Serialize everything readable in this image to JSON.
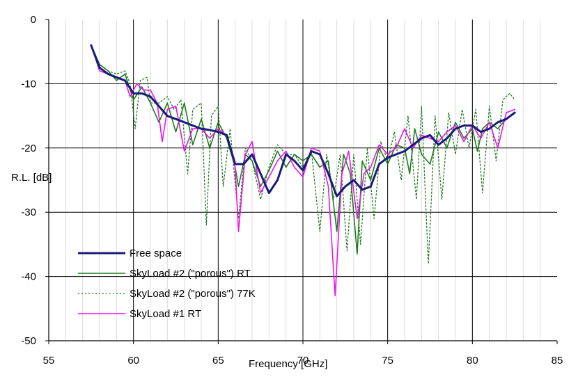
{
  "chart_data": {
    "type": "line",
    "title": "",
    "xlabel": "Frequency [GHz]",
    "ylabel": "R.L. [dB]",
    "xlim": [
      55,
      85
    ],
    "ylim": [
      -50,
      0
    ],
    "x_ticks": [
      55,
      60,
      65,
      70,
      75,
      80,
      85
    ],
    "y_ticks": [
      0,
      -10,
      -20,
      -30,
      -40,
      -50
    ],
    "x_tick_labels": [
      "55",
      "60",
      "65",
      "70",
      "75",
      "80",
      "85"
    ],
    "y_tick_labels": [
      "0",
      "-10",
      "-20",
      "-30",
      "-40",
      "-50"
    ],
    "grid": {
      "major": true,
      "minor_x": true
    },
    "legend": "inside bottom-left",
    "series": [
      {
        "name": "Free space",
        "color": "#1a1a7a",
        "style": "solid-thick",
        "points": [
          [
            57.5,
            -4
          ],
          [
            58,
            -7.5
          ],
          [
            58.5,
            -8.5
          ],
          [
            59,
            -9
          ],
          [
            59.5,
            -9.5
          ],
          [
            60,
            -11.5
          ],
          [
            60.5,
            -11.5
          ],
          [
            61,
            -12
          ],
          [
            61.5,
            -13.5
          ],
          [
            62,
            -15
          ],
          [
            62.5,
            -15.5
          ],
          [
            63,
            -16
          ],
          [
            63.5,
            -16.5
          ],
          [
            64,
            -17
          ],
          [
            64.5,
            -17.2
          ],
          [
            65,
            -17.5
          ],
          [
            65.5,
            -18
          ],
          [
            66,
            -22.5
          ],
          [
            66.5,
            -22.5
          ],
          [
            67,
            -21
          ],
          [
            67.5,
            -24
          ],
          [
            68,
            -27
          ],
          [
            68.5,
            -25
          ],
          [
            69,
            -21
          ],
          [
            69.5,
            -22
          ],
          [
            70,
            -23.5
          ],
          [
            70.5,
            -20.5
          ],
          [
            71,
            -21
          ],
          [
            71.5,
            -24
          ],
          [
            72,
            -27.5
          ],
          [
            72.5,
            -26
          ],
          [
            73,
            -25
          ],
          [
            73.5,
            -26.5
          ],
          [
            74,
            -26
          ],
          [
            74.5,
            -22.5
          ],
          [
            75,
            -21.5
          ],
          [
            75.5,
            -21
          ],
          [
            76,
            -20.5
          ],
          [
            76.5,
            -19.5
          ],
          [
            77,
            -18.5
          ],
          [
            77.5,
            -18
          ],
          [
            78,
            -19.5
          ],
          [
            78.5,
            -18.5
          ],
          [
            79,
            -17
          ],
          [
            79.5,
            -16.5
          ],
          [
            80,
            -16.5
          ],
          [
            80.5,
            -17.5
          ],
          [
            81,
            -17
          ],
          [
            81.5,
            -16
          ],
          [
            82,
            -15.5
          ],
          [
            82.5,
            -14.5
          ]
        ]
      },
      {
        "name": "SkyLoad #2 (\"porous\") RT",
        "color": "#1e7a1e",
        "style": "solid",
        "points": [
          [
            57.5,
            -4
          ],
          [
            58,
            -7
          ],
          [
            58.5,
            -8
          ],
          [
            59,
            -9.5
          ],
          [
            59.5,
            -8.5
          ],
          [
            60,
            -12.5
          ],
          [
            60.5,
            -10.5
          ],
          [
            61,
            -13
          ],
          [
            61.5,
            -16
          ],
          [
            62,
            -13
          ],
          [
            62.5,
            -17.5
          ],
          [
            63,
            -13
          ],
          [
            63.5,
            -19.5
          ],
          [
            64,
            -15.5
          ],
          [
            64.5,
            -20
          ],
          [
            65,
            -16
          ],
          [
            65.5,
            -18.5
          ],
          [
            66,
            -23
          ],
          [
            66.2,
            -26
          ],
          [
            66.6,
            -21
          ],
          [
            67,
            -22
          ],
          [
            67.5,
            -26
          ],
          [
            68,
            -23.5
          ],
          [
            68.5,
            -20.5
          ],
          [
            69,
            -23
          ],
          [
            69.5,
            -21
          ],
          [
            70,
            -22
          ],
          [
            70.5,
            -21
          ],
          [
            71,
            -23
          ],
          [
            71.5,
            -22
          ],
          [
            72,
            -33
          ],
          [
            72.4,
            -21
          ],
          [
            72.8,
            -24
          ],
          [
            73.2,
            -36.5
          ],
          [
            73.5,
            -22
          ],
          [
            74,
            -25
          ],
          [
            74.5,
            -20
          ],
          [
            75,
            -22.5
          ],
          [
            75.5,
            -19.5
          ],
          [
            76,
            -20
          ],
          [
            76.3,
            -24
          ],
          [
            76.6,
            -17
          ],
          [
            77,
            -21
          ],
          [
            77.5,
            -22.5
          ],
          [
            78,
            -17.5
          ],
          [
            78.5,
            -20
          ],
          [
            79,
            -16
          ],
          [
            79.5,
            -18.5
          ],
          [
            80,
            -17
          ],
          [
            80.3,
            -20.5
          ],
          [
            80.6,
            -17
          ],
          [
            81,
            -16
          ],
          [
            81.5,
            -17
          ],
          [
            82,
            -15.5
          ],
          [
            82.5,
            -14.5
          ]
        ]
      },
      {
        "name": "SkyLoad #2 (\"porous\")  77K",
        "color": "#1e7a1e",
        "style": "dotted",
        "points": [
          [
            57.5,
            -4
          ],
          [
            58,
            -7
          ],
          [
            58.5,
            -8
          ],
          [
            59,
            -8.5
          ],
          [
            59.5,
            -8
          ],
          [
            59.8,
            -10
          ],
          [
            60.1,
            -17
          ],
          [
            60.4,
            -9.5
          ],
          [
            60.8,
            -9
          ],
          [
            61,
            -13
          ],
          [
            61.5,
            -13
          ],
          [
            62,
            -12
          ],
          [
            62.4,
            -14
          ],
          [
            62.8,
            -12.5
          ],
          [
            63.2,
            -24
          ],
          [
            63.5,
            -14
          ],
          [
            64,
            -13
          ],
          [
            64.3,
            -32
          ],
          [
            64.6,
            -15
          ],
          [
            65,
            -13.5
          ],
          [
            65.3,
            -26
          ],
          [
            65.7,
            -17
          ],
          [
            66.2,
            -31
          ],
          [
            66.6,
            -20
          ],
          [
            67,
            -22
          ],
          [
            67.5,
            -28
          ],
          [
            68,
            -23
          ],
          [
            68.5,
            -19.5
          ],
          [
            69,
            -21
          ],
          [
            69.5,
            -21
          ],
          [
            70,
            -23
          ],
          [
            70.5,
            -20.5
          ],
          [
            71,
            -33
          ],
          [
            71.4,
            -21
          ],
          [
            71.8,
            -28
          ],
          [
            72.2,
            -21
          ],
          [
            72.6,
            -36
          ],
          [
            73,
            -21
          ],
          [
            73.4,
            -35
          ],
          [
            73.8,
            -20
          ],
          [
            74.2,
            -31
          ],
          [
            74.6,
            -19
          ],
          [
            75,
            -22
          ],
          [
            75.4,
            -17.5
          ],
          [
            75.8,
            -25
          ],
          [
            76.2,
            -15
          ],
          [
            76.7,
            -28
          ],
          [
            77,
            -13.5
          ],
          [
            77.4,
            -38
          ],
          [
            77.8,
            -15
          ],
          [
            78.2,
            -28
          ],
          [
            78.6,
            -14.5
          ],
          [
            79,
            -21
          ],
          [
            79.4,
            -14
          ],
          [
            79.8,
            -20
          ],
          [
            80.2,
            -14
          ],
          [
            80.6,
            -27
          ],
          [
            81,
            -13.5
          ],
          [
            81.4,
            -22
          ],
          [
            81.8,
            -12.5
          ],
          [
            82.2,
            -11.5
          ],
          [
            82.5,
            -12.5
          ]
        ]
      },
      {
        "name": "SkyLoad #1 RT",
        "color": "#ee10ee",
        "style": "solid",
        "points": [
          [
            57.5,
            -4
          ],
          [
            58,
            -8
          ],
          [
            58.5,
            -8.5
          ],
          [
            59,
            -9
          ],
          [
            59.5,
            -9.5
          ],
          [
            59.8,
            -12
          ],
          [
            60.2,
            -10
          ],
          [
            60.6,
            -11
          ],
          [
            61,
            -11
          ],
          [
            61.4,
            -13
          ],
          [
            61.7,
            -19
          ],
          [
            62,
            -14
          ],
          [
            62.5,
            -13.5
          ],
          [
            63,
            -20.5
          ],
          [
            63.5,
            -17
          ],
          [
            64,
            -17
          ],
          [
            64.5,
            -18.5
          ],
          [
            65,
            -17
          ],
          [
            65.5,
            -18
          ],
          [
            66,
            -23
          ],
          [
            66.2,
            -33
          ],
          [
            66.6,
            -21
          ],
          [
            67,
            -19
          ],
          [
            67.5,
            -27
          ],
          [
            68,
            -24.5
          ],
          [
            68.5,
            -22
          ],
          [
            69,
            -20.5
          ],
          [
            69.5,
            -23
          ],
          [
            70,
            -24.5
          ],
          [
            70.5,
            -20
          ],
          [
            71,
            -20.5
          ],
          [
            71.5,
            -26
          ],
          [
            71.9,
            -43
          ],
          [
            72.3,
            -24
          ],
          [
            72.7,
            -20.5
          ],
          [
            73.2,
            -31
          ],
          [
            73.6,
            -24
          ],
          [
            74,
            -23
          ],
          [
            74.5,
            -19.5
          ],
          [
            75,
            -21
          ],
          [
            75.5,
            -20
          ],
          [
            76,
            -17
          ],
          [
            76.5,
            -20
          ],
          [
            77,
            -18
          ],
          [
            77.5,
            -18.5
          ],
          [
            78,
            -19
          ],
          [
            78.5,
            -17.5
          ],
          [
            79,
            -16.5
          ],
          [
            79.5,
            -19
          ],
          [
            80,
            -16.5
          ],
          [
            80.5,
            -18.5
          ],
          [
            81,
            -16
          ],
          [
            81.5,
            -20
          ],
          [
            82,
            -14.5
          ],
          [
            82.5,
            -14
          ]
        ]
      }
    ]
  }
}
